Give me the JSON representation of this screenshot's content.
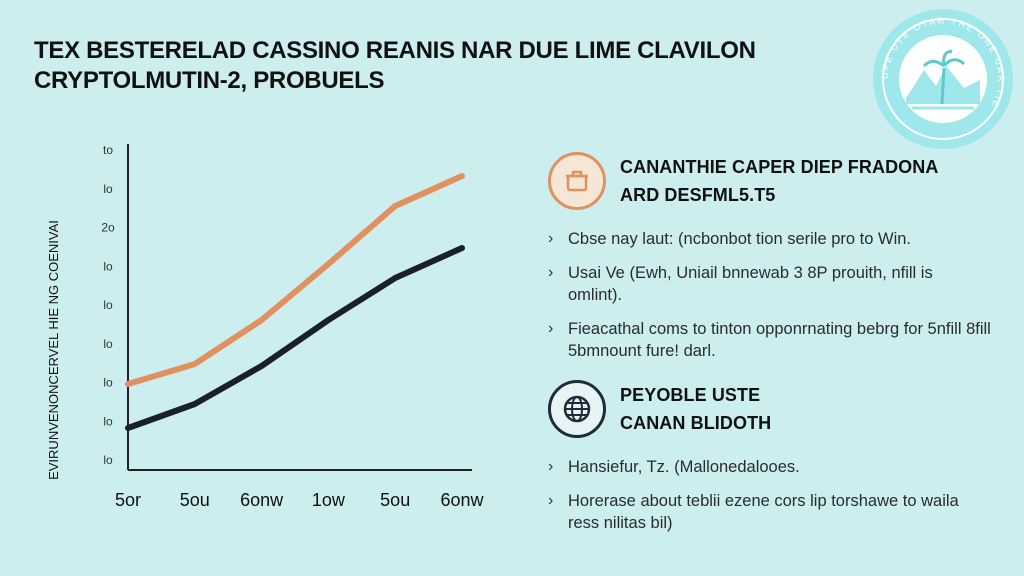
{
  "title": {
    "line1": "TEX BESTERELAD CASSINO REANIS NAR DUE LIME CLAVILON",
    "line2": "CRYPTOLMUTIN-2, PROBUELS"
  },
  "chart_data": {
    "type": "line",
    "ylabel": "EVIRUNVENONCERVEL HIE NG COENIVAI",
    "x_ticks": [
      "5or",
      "5ou",
      "6onw",
      "1ow",
      "5ou",
      "6onw"
    ],
    "y_ticks": [
      "to",
      "lo",
      "2o",
      "lo",
      "lo",
      "lo",
      "lo",
      "lo",
      "lo"
    ],
    "ylim": [
      0,
      8
    ],
    "xlim": [
      0,
      5
    ],
    "grid": false,
    "series": [
      {
        "color": "#e0915f",
        "points": [
          [
            0,
            2.15
          ],
          [
            1,
            2.65
          ],
          [
            2,
            3.75
          ],
          [
            3,
            5.15
          ],
          [
            4,
            6.6
          ],
          [
            5,
            7.35
          ]
        ]
      },
      {
        "color": "#1a1f2e",
        "points": [
          [
            0,
            1.05
          ],
          [
            1,
            1.65
          ],
          [
            2,
            2.6
          ],
          [
            3,
            3.75
          ],
          [
            4,
            4.8
          ],
          [
            5,
            5.55
          ]
        ]
      }
    ]
  },
  "section1": {
    "heading_line1": "CANANTHIE CAPER  DIEP FRADONA",
    "heading_line2": "ARD DESFML5.T5",
    "icon": "pot-icon",
    "accent": "#e0915f",
    "bullets": [
      "Cbse nay laut: (ncbonbot tion serile pro to Win.",
      "Usai Ve (Ewh, Uniail bnnewab 3 8P prouith, nfill is omlint).",
      "Fieacathal coms to tinton opponrnating bebrg for 5nfill 8fill 5bmnount fure! darl."
    ]
  },
  "section2": {
    "heading_line1": "PEYOBLE USTE",
    "heading_line2": "CANAN BLIDOTH",
    "icon": "globe-icon",
    "accent": "#1f2a3a",
    "bullets": [
      "Hansiefur, Tz. (Mallonedalooes.",
      "Horerase about teblii ezene cors lip torshawe to waila ress nilitas bil)"
    ]
  },
  "seal": {
    "color": "#9ee7ea",
    "ring_text": "UFE UTE OTAR THE ONE UAR TIE"
  },
  "chevron": "›"
}
